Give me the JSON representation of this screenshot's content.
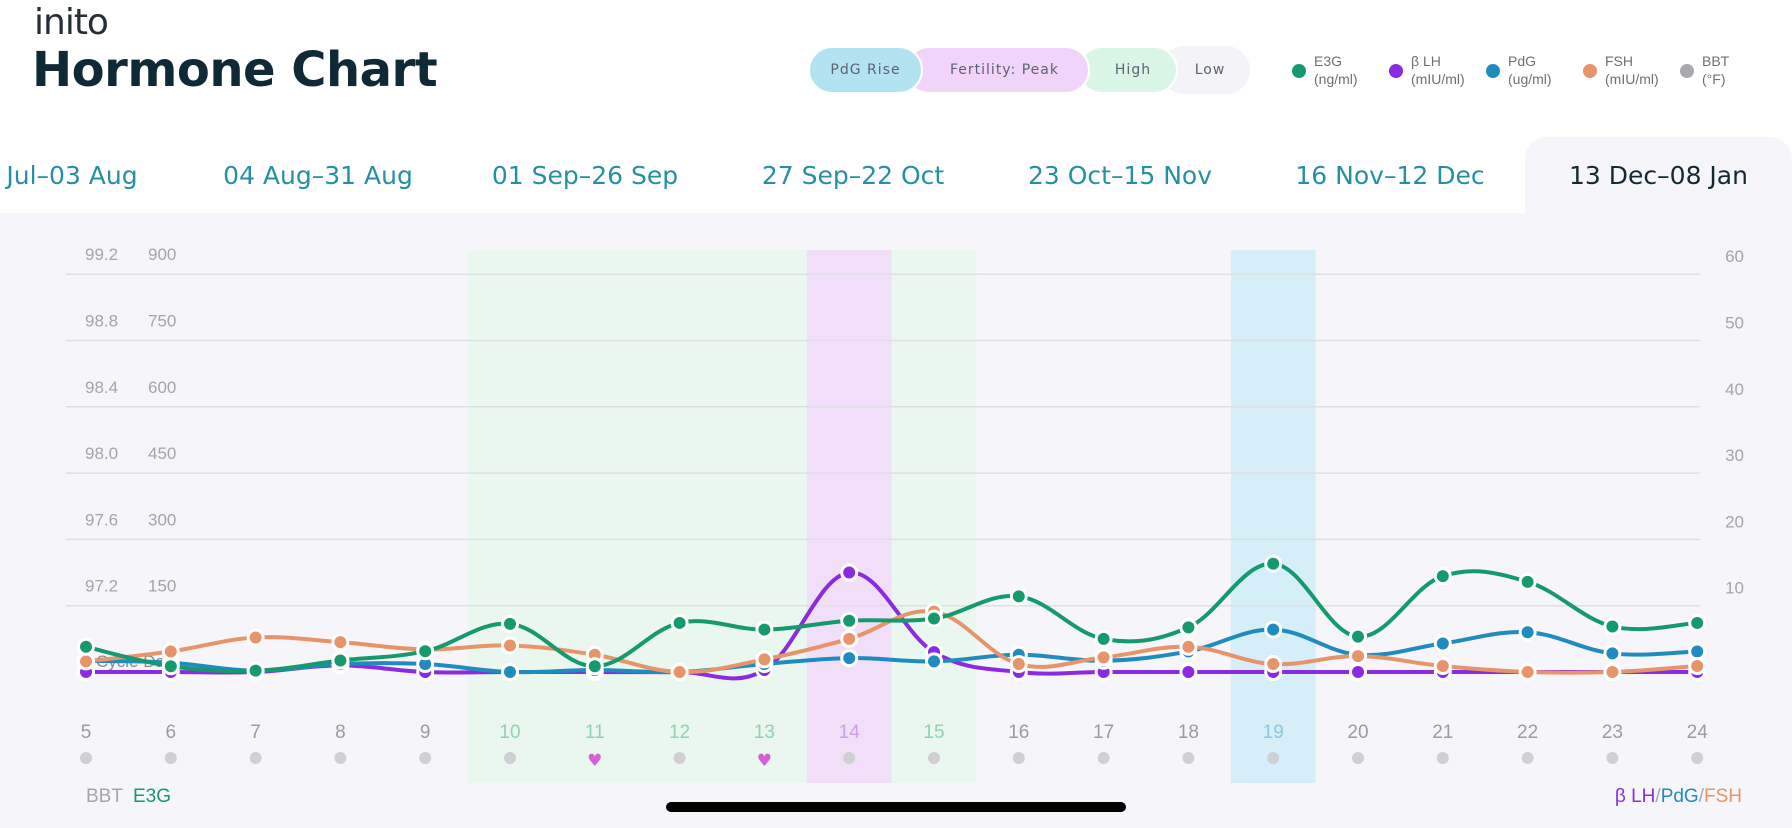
{
  "header": {
    "logo": "inito",
    "title": "Hormone Chart"
  },
  "phase_legend": [
    {
      "label": "PdG Rise",
      "color": "#b3e3f1"
    },
    {
      "label": "Fertility: Peak",
      "color": "#f1d4fa"
    },
    {
      "label": "High",
      "color": "#d9f6e6"
    },
    {
      "label": "Low",
      "color": "#f4f4f8"
    }
  ],
  "series_legend": [
    {
      "name": "E3G",
      "unit": "(ng/ml)",
      "color": "#16996c"
    },
    {
      "name": "β LH",
      "unit": "(mIU/ml)",
      "color": "#8a2be2"
    },
    {
      "name": "PdG",
      "unit": "(ug/ml)",
      "color": "#1f8bbf"
    },
    {
      "name": "FSH",
      "unit": "(mIU/ml)",
      "color": "#e8946a"
    },
    {
      "name": "BBT",
      "unit": "(°F)",
      "color": "#a9a9ad"
    }
  ],
  "tabs": [
    {
      "label": "Jul–03 Aug",
      "selected": false
    },
    {
      "label": "04 Aug–31 Aug",
      "selected": false
    },
    {
      "label": "01 Sep–26 Sep",
      "selected": false
    },
    {
      "label": "27 Sep–22 Oct",
      "selected": false
    },
    {
      "label": "23 Oct–15 Nov",
      "selected": false
    },
    {
      "label": "16 Nov–12 Dec",
      "selected": false
    },
    {
      "label": "13 Dec–08 Jan",
      "selected": true
    }
  ],
  "chart_data": {
    "type": "line",
    "xlabel": "Cycle Day",
    "x": [
      5,
      6,
      7,
      8,
      9,
      10,
      11,
      12,
      13,
      14,
      15,
      16,
      17,
      18,
      19,
      20,
      21,
      22,
      23,
      24
    ],
    "axes": {
      "bbt_ticks": [
        "99.2",
        "98.8",
        "98.4",
        "98.0",
        "97.6",
        "97.2"
      ],
      "e3g_ticks": [
        "900",
        "750",
        "600",
        "450",
        "300",
        "150"
      ],
      "e3g_range": [
        0,
        900
      ],
      "right_ticks": [
        "60",
        "50",
        "40",
        "30",
        "20",
        "10"
      ],
      "right_range": [
        0,
        60
      ],
      "left_axis_labels": [
        "BBT",
        "E3G"
      ],
      "right_axis_label": [
        "β LH",
        "PdG",
        "FSH"
      ]
    },
    "grid": true,
    "phases": {
      "high": [
        10,
        11,
        12,
        13,
        15
      ],
      "peak": [
        14
      ],
      "pdg_rise": [
        19
      ]
    },
    "intercourse_days": [
      11,
      13
    ],
    "series": [
      {
        "name": "E3G",
        "axis": "left",
        "color": "#16996c",
        "values": [
          57,
          13,
          3,
          26,
          47,
          109,
          13,
          111,
          96,
          116,
          121,
          171,
          75,
          101,
          245,
          80,
          217,
          204,
          103,
          111
        ]
      },
      {
        "name": "β LH",
        "axis": "right",
        "color": "#8a2be2",
        "values": [
          0,
          0,
          0,
          1,
          0,
          0,
          0,
          0,
          0.3,
          15,
          3,
          0,
          0,
          0,
          0,
          0,
          0,
          0,
          0,
          0
        ]
      },
      {
        "name": "PdG",
        "axis": "right",
        "color": "#1f8bbf",
        "values": [
          1.7,
          1.4,
          0.2,
          1.2,
          1.2,
          0,
          0.3,
          0,
          1.2,
          2.1,
          1.6,
          2.6,
          1.7,
          3.1,
          6.4,
          2.6,
          4.3,
          6,
          2.8,
          3.1
        ]
      },
      {
        "name": "FSH",
        "axis": "right",
        "color": "#e8946a",
        "values": [
          1.6,
          3.1,
          5.2,
          4.5,
          3.4,
          4,
          2.6,
          0,
          1.9,
          5,
          9.1,
          1.2,
          2.2,
          3.8,
          1.2,
          2.4,
          0.9,
          0,
          0,
          0.9
        ]
      }
    ],
    "colors": {
      "high_band": "#e9f7ef",
      "peak_band": "#f1dffa",
      "pdg_band": "#d5eef8",
      "high_day": "#8fd3b0",
      "peak_day": "#c9a0ea",
      "pdg_day": "#8cc7e2",
      "day": "#9a9ca2",
      "heart": "#d45fd6",
      "dot": "#cfd0d4"
    }
  }
}
